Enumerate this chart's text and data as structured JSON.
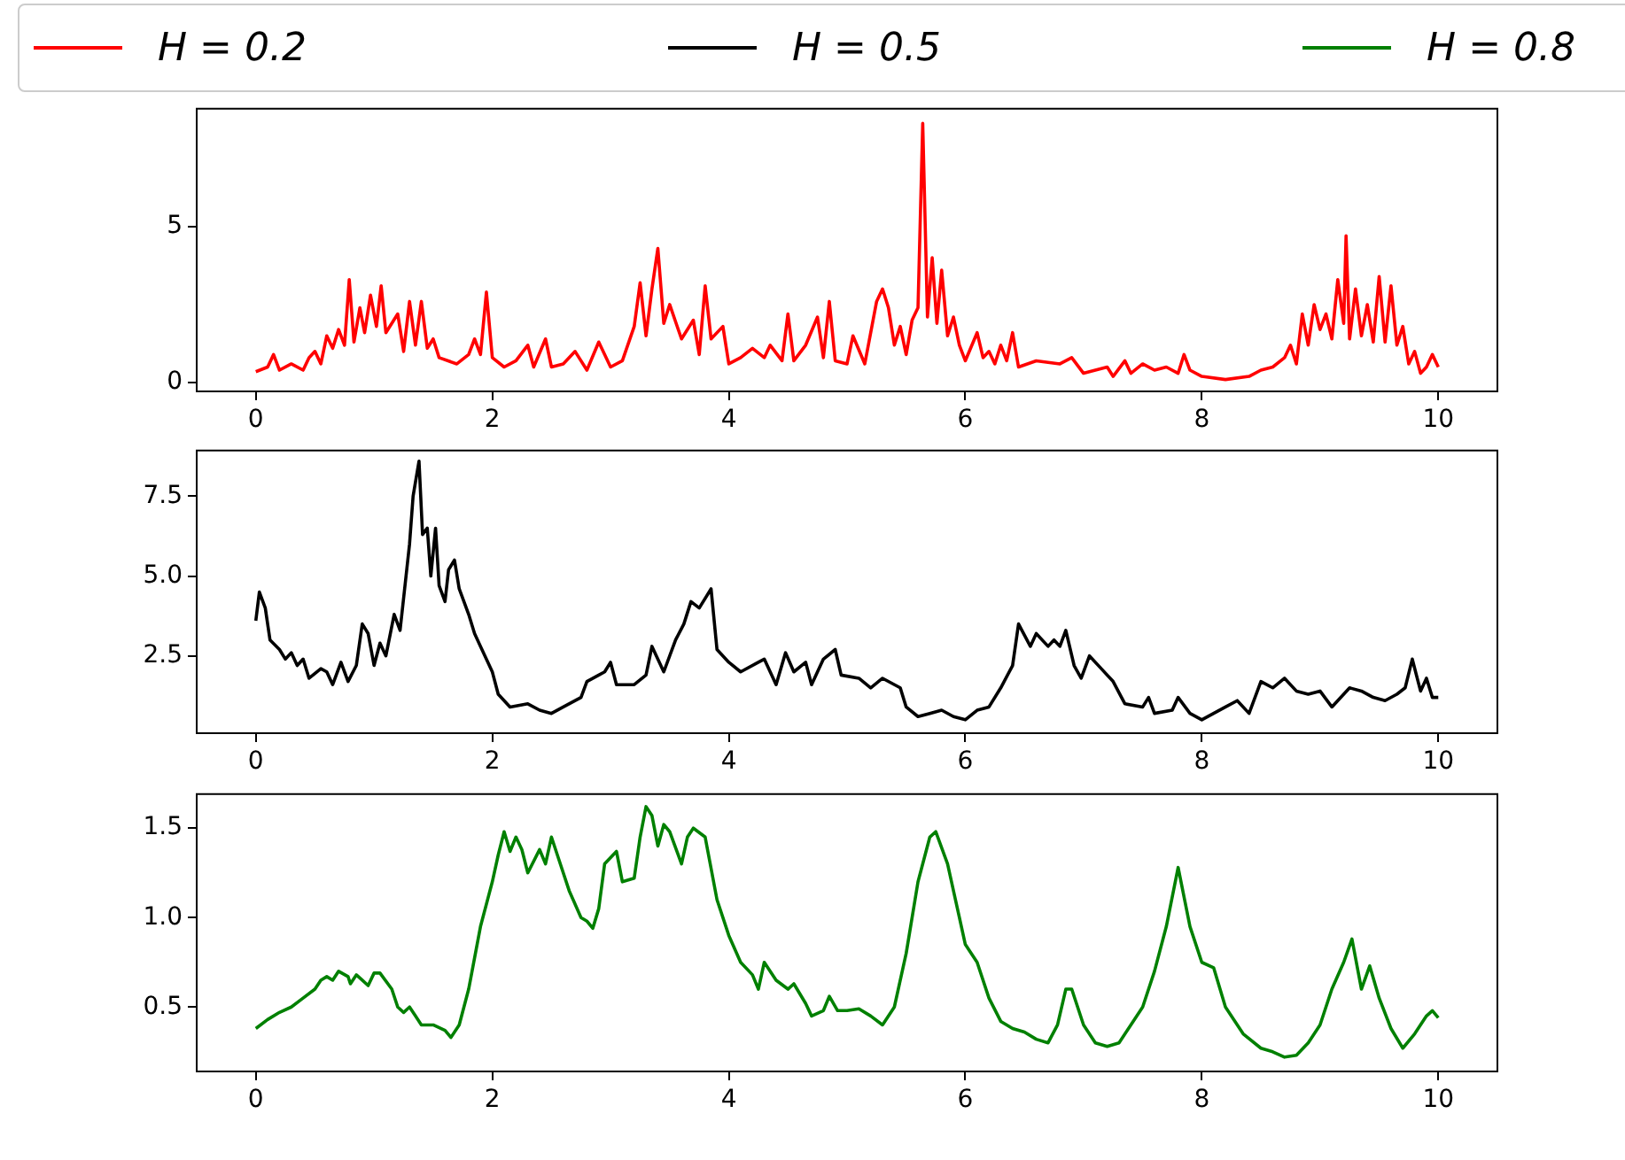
{
  "chart_data": [
    {
      "type": "line",
      "legend": "top",
      "xlim": [
        -0.5,
        10.5
      ],
      "xticks": [
        0,
        2,
        4,
        6,
        8,
        10
      ],
      "ylim": [
        -0.28,
        8.77
      ],
      "yticks": [
        0,
        5
      ],
      "grid": false,
      "marker": "none",
      "series": [
        {
          "name": "H = 0.2",
          "color": "#ff0000",
          "x": [
            0,
            0.1,
            0.15,
            0.2,
            0.3,
            0.4,
            0.45,
            0.5,
            0.55,
            0.6,
            0.65,
            0.7,
            0.75,
            0.79,
            0.83,
            0.88,
            0.92,
            0.97,
            1.02,
            1.06,
            1.1,
            1.2,
            1.25,
            1.3,
            1.35,
            1.4,
            1.45,
            1.5,
            1.55,
            1.7,
            1.8,
            1.85,
            1.9,
            1.95,
            2.0,
            2.1,
            2.2,
            2.3,
            2.35,
            2.45,
            2.5,
            2.6,
            2.7,
            2.8,
            2.9,
            3.0,
            3.1,
            3.2,
            3.25,
            3.3,
            3.35,
            3.4,
            3.45,
            3.5,
            3.6,
            3.7,
            3.75,
            3.8,
            3.85,
            3.95,
            4.0,
            4.1,
            4.2,
            4.3,
            4.35,
            4.45,
            4.5,
            4.55,
            4.65,
            4.75,
            4.8,
            4.85,
            4.9,
            5.0,
            5.05,
            5.15,
            5.25,
            5.3,
            5.35,
            5.4,
            5.45,
            5.5,
            5.55,
            5.6,
            5.64,
            5.68,
            5.72,
            5.76,
            5.8,
            5.85,
            5.9,
            5.95,
            6.0,
            6.1,
            6.15,
            6.2,
            6.25,
            6.3,
            6.35,
            6.4,
            6.45,
            6.6,
            6.8,
            6.9,
            7.0,
            7.2,
            7.25,
            7.35,
            7.4,
            7.5,
            7.6,
            7.7,
            7.8,
            7.85,
            7.9,
            8.0,
            8.2,
            8.4,
            8.5,
            8.6,
            8.7,
            8.75,
            8.8,
            8.85,
            8.9,
            8.95,
            9.0,
            9.05,
            9.1,
            9.15,
            9.2,
            9.22,
            9.25,
            9.3,
            9.35,
            9.4,
            9.45,
            9.5,
            9.55,
            9.6,
            9.65,
            9.7,
            9.75,
            9.8,
            9.85,
            9.9,
            9.95,
            10
          ],
          "values": [
            0.35,
            0.5,
            0.9,
            0.4,
            0.6,
            0.4,
            0.8,
            1.0,
            0.6,
            1.5,
            1.1,
            1.7,
            1.2,
            3.3,
            1.3,
            2.4,
            1.6,
            2.8,
            1.8,
            3.1,
            1.6,
            2.2,
            1.0,
            2.6,
            1.2,
            2.6,
            1.1,
            1.4,
            0.8,
            0.6,
            0.9,
            1.4,
            0.9,
            2.9,
            0.8,
            0.5,
            0.7,
            1.2,
            0.5,
            1.4,
            0.5,
            0.6,
            1.0,
            0.4,
            1.3,
            0.5,
            0.7,
            1.8,
            3.2,
            1.5,
            3.0,
            4.3,
            1.9,
            2.5,
            1.4,
            2.0,
            0.9,
            3.1,
            1.4,
            1.8,
            0.6,
            0.8,
            1.1,
            0.8,
            1.2,
            0.7,
            2.2,
            0.7,
            1.2,
            2.1,
            0.8,
            2.6,
            0.7,
            0.6,
            1.5,
            0.6,
            2.6,
            3.0,
            2.4,
            1.2,
            1.8,
            0.9,
            2.0,
            2.4,
            8.3,
            2.1,
            4.0,
            1.9,
            3.6,
            1.5,
            2.1,
            1.2,
            0.7,
            1.6,
            0.8,
            1.0,
            0.6,
            1.2,
            0.7,
            1.6,
            0.5,
            0.7,
            0.6,
            0.8,
            0.3,
            0.5,
            0.2,
            0.7,
            0.3,
            0.6,
            0.4,
            0.5,
            0.3,
            0.9,
            0.4,
            0.2,
            0.1,
            0.2,
            0.4,
            0.5,
            0.8,
            1.2,
            0.6,
            2.2,
            1.2,
            2.5,
            1.7,
            2.2,
            1.4,
            3.3,
            1.9,
            4.7,
            1.4,
            3.0,
            1.5,
            2.5,
            1.3,
            3.4,
            1.3,
            3.1,
            1.2,
            1.8,
            0.6,
            1.0,
            0.3,
            0.5,
            0.9,
            0.5
          ]
        }
      ]
    },
    {
      "type": "line",
      "legend": "top",
      "xlim": [
        -0.5,
        10.5
      ],
      "xticks": [
        0,
        2,
        4,
        6,
        8,
        10
      ],
      "ylim": [
        0.08,
        8.93
      ],
      "yticks": [
        2.5,
        {
          "value": 5,
          "label": "5.0"
        },
        7.5
      ],
      "grid": false,
      "marker": "none",
      "series": [
        {
          "name": "H = 0.5",
          "color": "#000000",
          "x": [
            0,
            0.03,
            0.08,
            0.12,
            0.2,
            0.25,
            0.3,
            0.35,
            0.4,
            0.45,
            0.55,
            0.6,
            0.65,
            0.72,
            0.78,
            0.85,
            0.9,
            0.95,
            1.0,
            1.05,
            1.1,
            1.17,
            1.22,
            1.3,
            1.33,
            1.38,
            1.41,
            1.45,
            1.48,
            1.52,
            1.55,
            1.6,
            1.63,
            1.68,
            1.72,
            1.8,
            1.85,
            1.9,
            2.0,
            2.05,
            2.15,
            2.3,
            2.4,
            2.5,
            2.6,
            2.75,
            2.8,
            2.9,
            2.95,
            3.0,
            3.05,
            3.2,
            3.3,
            3.35,
            3.45,
            3.55,
            3.62,
            3.68,
            3.75,
            3.85,
            3.9,
            4.0,
            4.1,
            4.25,
            4.3,
            4.4,
            4.48,
            4.55,
            4.65,
            4.7,
            4.8,
            4.9,
            4.95,
            5.1,
            5.2,
            5.3,
            5.45,
            5.5,
            5.6,
            5.7,
            5.8,
            5.9,
            6.0,
            6.1,
            6.2,
            6.3,
            6.4,
            6.45,
            6.55,
            6.6,
            6.7,
            6.75,
            6.8,
            6.85,
            6.92,
            6.98,
            7.05,
            7.15,
            7.25,
            7.35,
            7.5,
            7.55,
            7.6,
            7.75,
            7.8,
            7.9,
            8.0,
            8.1,
            8.2,
            8.3,
            8.4,
            8.5,
            8.6,
            8.7,
            8.8,
            8.9,
            9.0,
            9.1,
            9.25,
            9.35,
            9.45,
            9.55,
            9.65,
            9.72,
            9.78,
            9.85,
            9.9,
            9.95,
            10
          ],
          "values": [
            3.6,
            4.5,
            4.0,
            3.0,
            2.7,
            2.4,
            2.6,
            2.2,
            2.4,
            1.8,
            2.1,
            2.0,
            1.6,
            2.3,
            1.7,
            2.2,
            3.5,
            3.2,
            2.2,
            2.9,
            2.5,
            3.8,
            3.3,
            6.0,
            7.5,
            8.6,
            6.3,
            6.5,
            5.0,
            6.5,
            4.7,
            4.2,
            5.2,
            5.5,
            4.6,
            3.8,
            3.2,
            2.8,
            2.0,
            1.3,
            0.9,
            1.0,
            0.8,
            0.7,
            0.9,
            1.2,
            1.7,
            1.9,
            2.0,
            2.3,
            1.6,
            1.6,
            1.9,
            2.8,
            2.0,
            3.0,
            3.5,
            4.2,
            4.0,
            4.6,
            2.7,
            2.3,
            2.0,
            2.3,
            2.4,
            1.6,
            2.6,
            2.0,
            2.3,
            1.6,
            2.4,
            2.7,
            1.9,
            1.8,
            1.5,
            1.8,
            1.5,
            0.9,
            0.6,
            0.7,
            0.8,
            0.6,
            0.5,
            0.8,
            0.9,
            1.5,
            2.2,
            3.5,
            2.8,
            3.2,
            2.8,
            3.0,
            2.8,
            3.3,
            2.2,
            1.8,
            2.5,
            2.1,
            1.7,
            1.0,
            0.9,
            1.2,
            0.7,
            0.8,
            1.2,
            0.7,
            0.5,
            0.7,
            0.9,
            1.1,
            0.7,
            1.7,
            1.5,
            1.8,
            1.4,
            1.3,
            1.4,
            0.9,
            1.5,
            1.4,
            1.2,
            1.1,
            1.3,
            1.5,
            2.4,
            1.4,
            1.8,
            1.2,
            1.2
          ]
        }
      ]
    },
    {
      "type": "line",
      "legend": "top",
      "xlim": [
        -0.5,
        10.5
      ],
      "xticks": [
        0,
        2,
        4,
        6,
        8,
        10
      ],
      "ylim": [
        0.14,
        1.69
      ],
      "yticks": [
        0.5,
        {
          "value": 1,
          "label": "1.0"
        },
        1.5
      ],
      "grid": false,
      "marker": "none",
      "series": [
        {
          "name": "H = 0.8",
          "color": "#008000",
          "x": [
            0,
            0.1,
            0.2,
            0.3,
            0.4,
            0.5,
            0.55,
            0.6,
            0.65,
            0.7,
            0.78,
            0.8,
            0.85,
            0.9,
            0.95,
            1.0,
            1.05,
            1.15,
            1.2,
            1.25,
            1.3,
            1.35,
            1.4,
            1.5,
            1.6,
            1.65,
            1.72,
            1.8,
            1.9,
            2.0,
            2.05,
            2.1,
            2.15,
            2.2,
            2.25,
            2.3,
            2.4,
            2.45,
            2.5,
            2.55,
            2.65,
            2.75,
            2.8,
            2.85,
            2.9,
            2.95,
            3.05,
            3.1,
            3.2,
            3.25,
            3.3,
            3.35,
            3.4,
            3.45,
            3.5,
            3.6,
            3.65,
            3.7,
            3.8,
            3.9,
            4.0,
            4.1,
            4.2,
            4.25,
            4.3,
            4.4,
            4.5,
            4.55,
            4.65,
            4.7,
            4.8,
            4.85,
            4.92,
            5.0,
            5.1,
            5.2,
            5.3,
            5.4,
            5.5,
            5.6,
            5.7,
            5.75,
            5.85,
            5.95,
            6.0,
            6.1,
            6.2,
            6.3,
            6.4,
            6.5,
            6.6,
            6.7,
            6.78,
            6.85,
            6.9,
            7.0,
            7.1,
            7.2,
            7.3,
            7.4,
            7.5,
            7.6,
            7.7,
            7.8,
            7.9,
            8.0,
            8.1,
            8.2,
            8.35,
            8.5,
            8.6,
            8.7,
            8.8,
            8.9,
            9.0,
            9.1,
            9.2,
            9.27,
            9.35,
            9.42,
            9.5,
            9.6,
            9.7,
            9.8,
            9.9,
            9.95,
            10
          ],
          "values": [
            0.38,
            0.43,
            0.47,
            0.5,
            0.55,
            0.6,
            0.65,
            0.67,
            0.65,
            0.7,
            0.67,
            0.63,
            0.68,
            0.65,
            0.62,
            0.69,
            0.69,
            0.6,
            0.5,
            0.47,
            0.5,
            0.45,
            0.4,
            0.4,
            0.37,
            0.33,
            0.4,
            0.6,
            0.95,
            1.2,
            1.35,
            1.48,
            1.37,
            1.45,
            1.38,
            1.25,
            1.38,
            1.3,
            1.45,
            1.35,
            1.15,
            1.0,
            0.98,
            0.94,
            1.05,
            1.3,
            1.37,
            1.2,
            1.22,
            1.45,
            1.62,
            1.57,
            1.4,
            1.52,
            1.48,
            1.3,
            1.45,
            1.5,
            1.45,
            1.1,
            0.9,
            0.75,
            0.68,
            0.6,
            0.75,
            0.65,
            0.6,
            0.63,
            0.52,
            0.45,
            0.48,
            0.56,
            0.48,
            0.48,
            0.49,
            0.45,
            0.4,
            0.5,
            0.8,
            1.2,
            1.45,
            1.48,
            1.3,
            1.0,
            0.85,
            0.75,
            0.55,
            0.42,
            0.38,
            0.36,
            0.32,
            0.3,
            0.4,
            0.6,
            0.6,
            0.4,
            0.3,
            0.28,
            0.3,
            0.4,
            0.5,
            0.7,
            0.95,
            1.28,
            0.95,
            0.75,
            0.72,
            0.5,
            0.35,
            0.27,
            0.25,
            0.22,
            0.23,
            0.3,
            0.4,
            0.6,
            0.75,
            0.88,
            0.6,
            0.73,
            0.55,
            0.38,
            0.27,
            0.35,
            0.45,
            0.48,
            0.44
          ]
        }
      ]
    }
  ]
}
